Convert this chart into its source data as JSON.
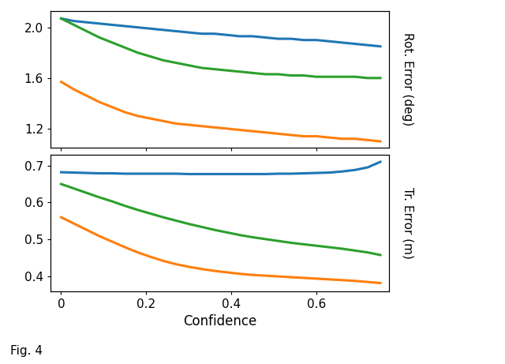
{
  "confidence": [
    0.0,
    0.03,
    0.06,
    0.09,
    0.12,
    0.15,
    0.18,
    0.21,
    0.24,
    0.27,
    0.3,
    0.33,
    0.36,
    0.39,
    0.42,
    0.45,
    0.48,
    0.51,
    0.54,
    0.57,
    0.6,
    0.63,
    0.66,
    0.69,
    0.72,
    0.75
  ],
  "rot_blue": [
    2.07,
    2.05,
    2.04,
    2.03,
    2.02,
    2.01,
    2.0,
    1.99,
    1.98,
    1.97,
    1.96,
    1.95,
    1.95,
    1.94,
    1.93,
    1.93,
    1.92,
    1.91,
    1.91,
    1.9,
    1.9,
    1.89,
    1.88,
    1.87,
    1.86,
    1.85
  ],
  "rot_green": [
    2.07,
    2.02,
    1.97,
    1.92,
    1.88,
    1.84,
    1.8,
    1.77,
    1.74,
    1.72,
    1.7,
    1.68,
    1.67,
    1.66,
    1.65,
    1.64,
    1.63,
    1.63,
    1.62,
    1.62,
    1.61,
    1.61,
    1.61,
    1.61,
    1.6,
    1.6
  ],
  "rot_orange": [
    1.57,
    1.51,
    1.46,
    1.41,
    1.37,
    1.33,
    1.3,
    1.28,
    1.26,
    1.24,
    1.23,
    1.22,
    1.21,
    1.2,
    1.19,
    1.18,
    1.17,
    1.16,
    1.15,
    1.14,
    1.14,
    1.13,
    1.12,
    1.12,
    1.11,
    1.1
  ],
  "tr_blue": [
    0.682,
    0.681,
    0.68,
    0.679,
    0.679,
    0.678,
    0.678,
    0.678,
    0.678,
    0.678,
    0.677,
    0.677,
    0.677,
    0.677,
    0.677,
    0.677,
    0.677,
    0.678,
    0.678,
    0.679,
    0.68,
    0.681,
    0.684,
    0.688,
    0.695,
    0.71
  ],
  "tr_green": [
    0.65,
    0.638,
    0.626,
    0.614,
    0.603,
    0.591,
    0.58,
    0.57,
    0.56,
    0.551,
    0.542,
    0.534,
    0.526,
    0.519,
    0.512,
    0.506,
    0.501,
    0.496,
    0.491,
    0.487,
    0.483,
    0.479,
    0.475,
    0.47,
    0.465,
    0.458
  ],
  "tr_orange": [
    0.56,
    0.543,
    0.526,
    0.509,
    0.494,
    0.479,
    0.465,
    0.453,
    0.442,
    0.433,
    0.426,
    0.42,
    0.415,
    0.411,
    0.407,
    0.404,
    0.402,
    0.4,
    0.398,
    0.396,
    0.394,
    0.392,
    0.39,
    0.388,
    0.385,
    0.382
  ],
  "color_blue": "#1f77b4",
  "color_green": "#2ca02c",
  "color_orange": "#ff7f0e",
  "xlabel": "Confidence",
  "ylabel_top": "Rot. Error (deg)",
  "ylabel_bottom": "Tr. Error (m)",
  "fig_label": "Fig. 4",
  "rot_yticks": [
    1.2,
    1.6,
    2.0
  ],
  "tr_yticks": [
    0.4,
    0.5,
    0.6,
    0.7
  ],
  "xticks": [
    0.0,
    0.2,
    0.4,
    0.6
  ],
  "line_width": 2.2,
  "background_color": "#ffffff"
}
